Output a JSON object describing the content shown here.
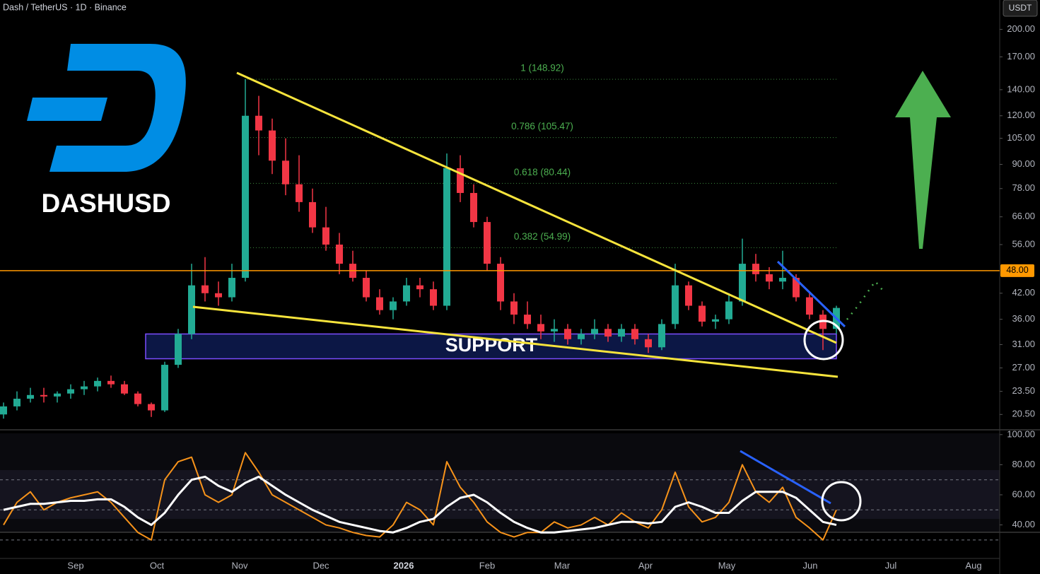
{
  "chart_data": [
    {
      "type": "candlestick",
      "title": "Dash / TetherUS · 1D · Binance",
      "currency": "USDT",
      "logo_text": "DASHUSD",
      "log_scale": true,
      "up_color": "#22ab94",
      "down_color": "#f23645",
      "ylim": [
        18.8,
        238
      ],
      "yticks": [
        {
          "value": 200,
          "label": "200.00"
        },
        {
          "value": 170,
          "label": "170.00"
        },
        {
          "value": 140,
          "label": "140.00"
        },
        {
          "value": 120,
          "label": "120.00"
        },
        {
          "value": 105,
          "label": "105.00"
        },
        {
          "value": 90,
          "label": "90.00"
        },
        {
          "value": 78,
          "label": "78.00"
        },
        {
          "value": 66,
          "label": "66.00"
        },
        {
          "value": 56,
          "label": "56.00"
        },
        {
          "value": 42,
          "label": "42.00"
        },
        {
          "value": 36,
          "label": "36.00"
        },
        {
          "value": 31,
          "label": "31.00"
        },
        {
          "value": 27,
          "label": "27.00"
        },
        {
          "value": 23.5,
          "label": "23.50"
        },
        {
          "value": 20.5,
          "label": "20.50"
        }
      ],
      "x_labels": [
        "Sep",
        "Oct",
        "Nov",
        "Dec",
        "2026",
        "Feb",
        "Mar",
        "Apr",
        "May",
        "Jun",
        "Jul",
        "Aug"
      ],
      "hline": {
        "value": 48,
        "label": "48.00",
        "color": "#ff9800"
      },
      "fib_levels": [
        {
          "value": 148.92,
          "label": "1 (148.92)"
        },
        {
          "value": 105.47,
          "label": "0.786 (105.47)"
        },
        {
          "value": 80.44,
          "label": "0.618 (80.44)"
        },
        {
          "value": 54.99,
          "label": "0.382 (54.99)"
        }
      ],
      "support_zone": {
        "label": "SUPPORT",
        "ylim": [
          28.5,
          33
        ]
      },
      "ohlc": [
        [
          20.5,
          22,
          20,
          21.5
        ],
        [
          21.5,
          23.5,
          21,
          22.5
        ],
        [
          22.5,
          24,
          22,
          23
        ],
        [
          23,
          24,
          22,
          22.8
        ],
        [
          22.8,
          23.5,
          22,
          23.2
        ],
        [
          23.2,
          24.5,
          22.5,
          23.8
        ],
        [
          23.8,
          25,
          23,
          24.2
        ],
        [
          24.2,
          25.5,
          23.5,
          25
        ],
        [
          25,
          25.8,
          24,
          24.5
        ],
        [
          24.5,
          25,
          23,
          23.2
        ],
        [
          23.2,
          23.5,
          21.5,
          21.8
        ],
        [
          21.8,
          22,
          20.2,
          21
        ],
        [
          21,
          28,
          20.8,
          27.5
        ],
        [
          27.5,
          34,
          27,
          33
        ],
        [
          33,
          50,
          32,
          44
        ],
        [
          44,
          52,
          40,
          42
        ],
        [
          42,
          45,
          39,
          41
        ],
        [
          41,
          50,
          40,
          46
        ],
        [
          46,
          149,
          45,
          120
        ],
        [
          120,
          135,
          95,
          110
        ],
        [
          110,
          118,
          85,
          92
        ],
        [
          92,
          105,
          75,
          80
        ],
        [
          80,
          95,
          68,
          72
        ],
        [
          72,
          78,
          60,
          62
        ],
        [
          62,
          70,
          54,
          56
        ],
        [
          56,
          60,
          47,
          50
        ],
        [
          50,
          54,
          45,
          46
        ],
        [
          46,
          48,
          40,
          41
        ],
        [
          41,
          43,
          37,
          38
        ],
        [
          38,
          41,
          36,
          40
        ],
        [
          40,
          46,
          39,
          44
        ],
        [
          44,
          46,
          41,
          43
        ],
        [
          43,
          45,
          38,
          39
        ],
        [
          39,
          96,
          38,
          88
        ],
        [
          88,
          95,
          72,
          76
        ],
        [
          76,
          80,
          62,
          64
        ],
        [
          64,
          66,
          48,
          50
        ],
        [
          50,
          52,
          38,
          40
        ],
        [
          40,
          42,
          35,
          37
        ],
        [
          37,
          40,
          34,
          35
        ],
        [
          35,
          37,
          32,
          33.5
        ],
        [
          33.5,
          36,
          31.5,
          34
        ],
        [
          34,
          35,
          31,
          32
        ],
        [
          32,
          34,
          31,
          33
        ],
        [
          33,
          36,
          32,
          34
        ],
        [
          34,
          35,
          31.5,
          32.5
        ],
        [
          32.5,
          35,
          31.5,
          34
        ],
        [
          34,
          35,
          31,
          32
        ],
        [
          32,
          33,
          29.5,
          30.5
        ],
        [
          30.5,
          36,
          30,
          35
        ],
        [
          35,
          50,
          34,
          44
        ],
        [
          44,
          45,
          38,
          39
        ],
        [
          39,
          40,
          34.5,
          35.5
        ],
        [
          35.5,
          37,
          34,
          36
        ],
        [
          36,
          42,
          35,
          40
        ],
        [
          40,
          58,
          39,
          50
        ],
        [
          50,
          53,
          45,
          47
        ],
        [
          47,
          49,
          43,
          45
        ],
        [
          45,
          54,
          43,
          46
        ],
        [
          46,
          47,
          40,
          41
        ],
        [
          41,
          42,
          36,
          37
        ],
        [
          37,
          38,
          30,
          34
        ],
        [
          34,
          39,
          33,
          38.5
        ]
      ]
    },
    {
      "type": "line",
      "ylim": [
        19.6,
        103.2
      ],
      "yticks": [
        {
          "value": 100,
          "label": "100.00"
        },
        {
          "value": 80,
          "label": "80.00"
        },
        {
          "value": 60,
          "label": "60.00"
        },
        {
          "value": 40,
          "label": "40.00"
        }
      ],
      "levels": [
        70,
        50,
        30
      ],
      "series": [
        {
          "color": "#f7931a",
          "values": [
            40,
            55,
            62,
            50,
            55,
            58,
            60,
            62,
            55,
            45,
            35,
            30,
            70,
            82,
            85,
            60,
            55,
            60,
            88,
            75,
            60,
            55,
            50,
            45,
            40,
            38,
            35,
            33,
            32,
            40,
            55,
            50,
            40,
            82,
            65,
            55,
            42,
            35,
            32,
            35,
            35,
            42,
            38,
            40,
            45,
            40,
            48,
            42,
            38,
            50,
            75,
            52,
            42,
            45,
            55,
            80,
            62,
            55,
            65,
            45,
            38,
            30,
            50
          ]
        },
        {
          "color": "#ffffff",
          "values": [
            50,
            52,
            54,
            54,
            55,
            56,
            56,
            57,
            57,
            52,
            45,
            40,
            48,
            60,
            70,
            72,
            66,
            62,
            68,
            72,
            66,
            60,
            55,
            50,
            46,
            42,
            40,
            38,
            36,
            35,
            38,
            42,
            44,
            52,
            58,
            60,
            55,
            48,
            42,
            38,
            35,
            35,
            36,
            37,
            38,
            40,
            42,
            42,
            41,
            42,
            52,
            55,
            52,
            48,
            48,
            56,
            62,
            62,
            62,
            58,
            50,
            42,
            40
          ]
        }
      ]
    }
  ]
}
